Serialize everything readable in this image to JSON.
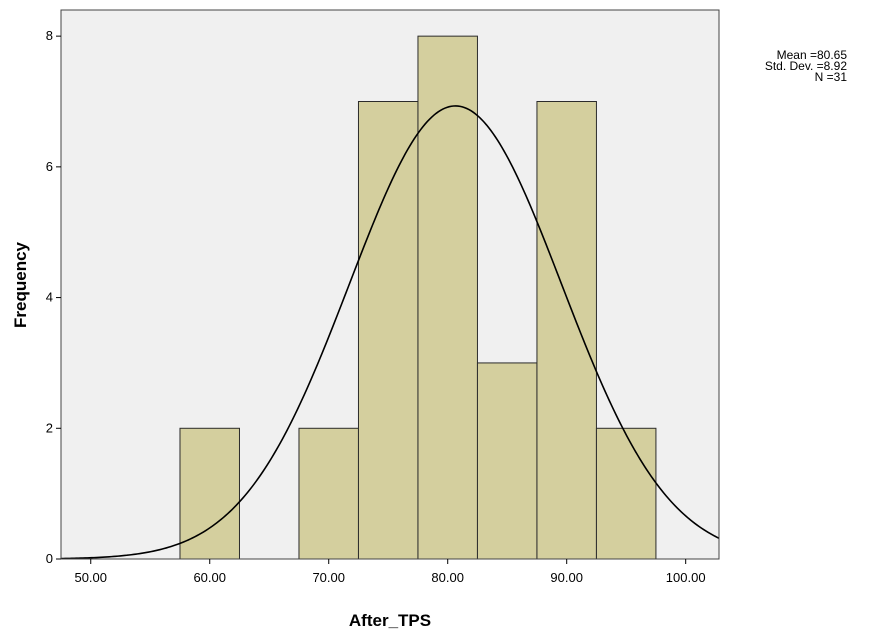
{
  "chart_data": {
    "type": "bar",
    "subtype": "histogram",
    "xlabel": "After_TPS",
    "ylabel": "Frequency",
    "xlim": [
      47.5,
      102.8
    ],
    "ylim": [
      0,
      8.4
    ],
    "x_ticks": [
      "50.00",
      "60.00",
      "70.00",
      "80.00",
      "90.00",
      "100.00"
    ],
    "y_ticks": [
      "0",
      "2",
      "4",
      "6",
      "8"
    ],
    "bins": [
      {
        "start": 57.5,
        "end": 62.5,
        "count": 2
      },
      {
        "start": 67.5,
        "end": 72.5,
        "count": 2
      },
      {
        "start": 72.5,
        "end": 77.5,
        "count": 7
      },
      {
        "start": 77.5,
        "end": 82.5,
        "count": 8
      },
      {
        "start": 82.5,
        "end": 87.5,
        "count": 3
      },
      {
        "start": 87.5,
        "end": 92.5,
        "count": 7
      },
      {
        "start": 92.5,
        "end": 97.5,
        "count": 2
      }
    ],
    "normal_curve": {
      "mean": 80.65,
      "std": 8.92,
      "n": 31,
      "bin_width": 5
    },
    "stats": [
      "Mean =80.65",
      "Std. Dev. =8.92",
      "N =31"
    ],
    "grid": false,
    "colors": {
      "plot_background": "#f0f0f0",
      "bar_fill": "#d4cf9e",
      "bar_stroke": "#2b2b2b",
      "curve": "#000000"
    }
  }
}
